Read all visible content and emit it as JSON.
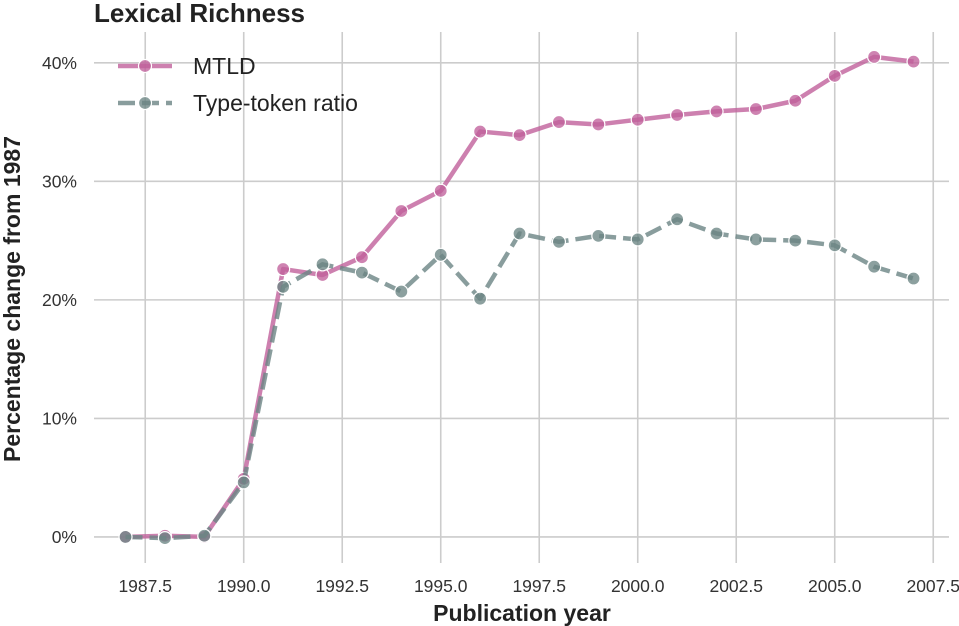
{
  "chart_data": {
    "type": "line",
    "title": "Lexical Richness",
    "xlabel": "Publication year",
    "ylabel": "Percentage change from 1987",
    "x": [
      1987,
      1988,
      1989,
      1990,
      1991,
      1992,
      1993,
      1994,
      1995,
      1996,
      1997,
      1998,
      1999,
      2000,
      2001,
      2002,
      2003,
      2004,
      2005,
      2006,
      2007
    ],
    "series": [
      {
        "name": "MTLD",
        "color": "#c0609b",
        "style": "solid",
        "values": [
          0.0,
          0.1,
          0.0,
          4.9,
          22.6,
          22.1,
          23.6,
          27.5,
          29.2,
          34.2,
          33.9,
          35.0,
          34.8,
          35.2,
          35.6,
          35.9,
          36.1,
          36.8,
          38.9,
          40.5,
          40.1
        ]
      },
      {
        "name": "Type-token ratio",
        "color": "#6b8584",
        "style": "dashed",
        "values": [
          0.0,
          -0.1,
          0.1,
          4.6,
          21.1,
          23.0,
          22.3,
          20.7,
          23.8,
          20.1,
          25.6,
          24.9,
          25.4,
          25.1,
          26.8,
          25.6,
          25.1,
          25.0,
          24.6,
          22.8,
          21.8
        ]
      }
    ],
    "xlim": [
      1986.2,
      2007.9
    ],
    "ylim": [
      -2.2,
      42.6
    ],
    "xticks": [
      1987.5,
      1990.0,
      1992.5,
      1995.0,
      1997.5,
      2000.0,
      2002.5,
      2005.0,
      2007.5
    ],
    "xtick_labels": [
      "1987.5",
      "1990.0",
      "1992.5",
      "1995.0",
      "1997.5",
      "2000.0",
      "2002.5",
      "2005.0",
      "2007.5"
    ],
    "yticks": [
      0,
      10,
      20,
      30,
      40
    ],
    "ytick_labels": [
      "0%",
      "10%",
      "20%",
      "30%",
      "40%"
    ],
    "grid": true,
    "legend_position": "top-left"
  }
}
